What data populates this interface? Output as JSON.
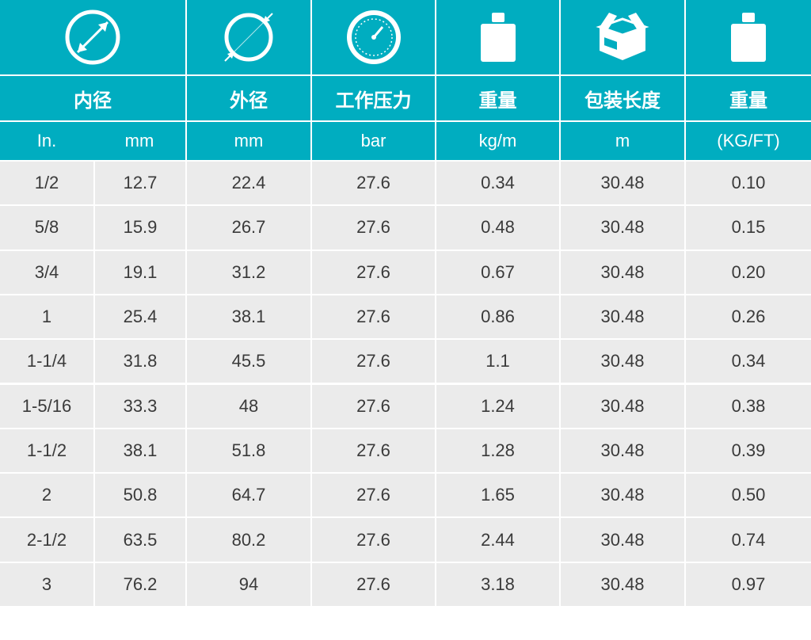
{
  "headers": {
    "inner_diameter": "内径",
    "outer_diameter": "外径",
    "working_pressure": "工作压力",
    "weight": "重量",
    "package_length": "包装长度",
    "weight_ft": "重量"
  },
  "units": [
    "In.",
    "mm",
    "mm",
    "bar",
    "kg/m",
    "m",
    "(KG/FT)"
  ],
  "icons": [
    "inner-diameter-icon",
    "outer-diameter-icon",
    "pressure-gauge-icon",
    "weight-icon",
    "package-box-icon",
    "weight-icon"
  ],
  "colors": {
    "header": "#00adc0",
    "row": "#ebebeb",
    "text": "#3a3a3a"
  },
  "rows": [
    [
      "1/2",
      "12.7",
      "22.4",
      "27.6",
      "0.34",
      "30.48",
      "0.10"
    ],
    [
      "5/8",
      "15.9",
      "26.7",
      "27.6",
      "0.48",
      "30.48",
      "0.15"
    ],
    [
      "3/4",
      "19.1",
      "31.2",
      "27.6",
      "0.67",
      "30.48",
      "0.20"
    ],
    [
      "1",
      "25.4",
      "38.1",
      "27.6",
      "0.86",
      "30.48",
      "0.26"
    ],
    [
      "1-1/4",
      "31.8",
      "45.5",
      "27.6",
      "1.1",
      "30.48",
      "0.34"
    ],
    [
      "1-5/16",
      "33.3",
      "48",
      "27.6",
      "1.24",
      "30.48",
      "0.38"
    ],
    [
      "1-1/2",
      "38.1",
      "51.8",
      "27.6",
      "1.28",
      "30.48",
      "0.39"
    ],
    [
      "2",
      "50.8",
      "64.7",
      "27.6",
      "1.65",
      "30.48",
      "0.50"
    ],
    [
      "2-1/2",
      "63.5",
      "80.2",
      "27.6",
      "2.44",
      "30.48",
      "0.74"
    ],
    [
      "3",
      "76.2",
      "94",
      "27.6",
      "3.18",
      "30.48",
      "0.97"
    ]
  ]
}
